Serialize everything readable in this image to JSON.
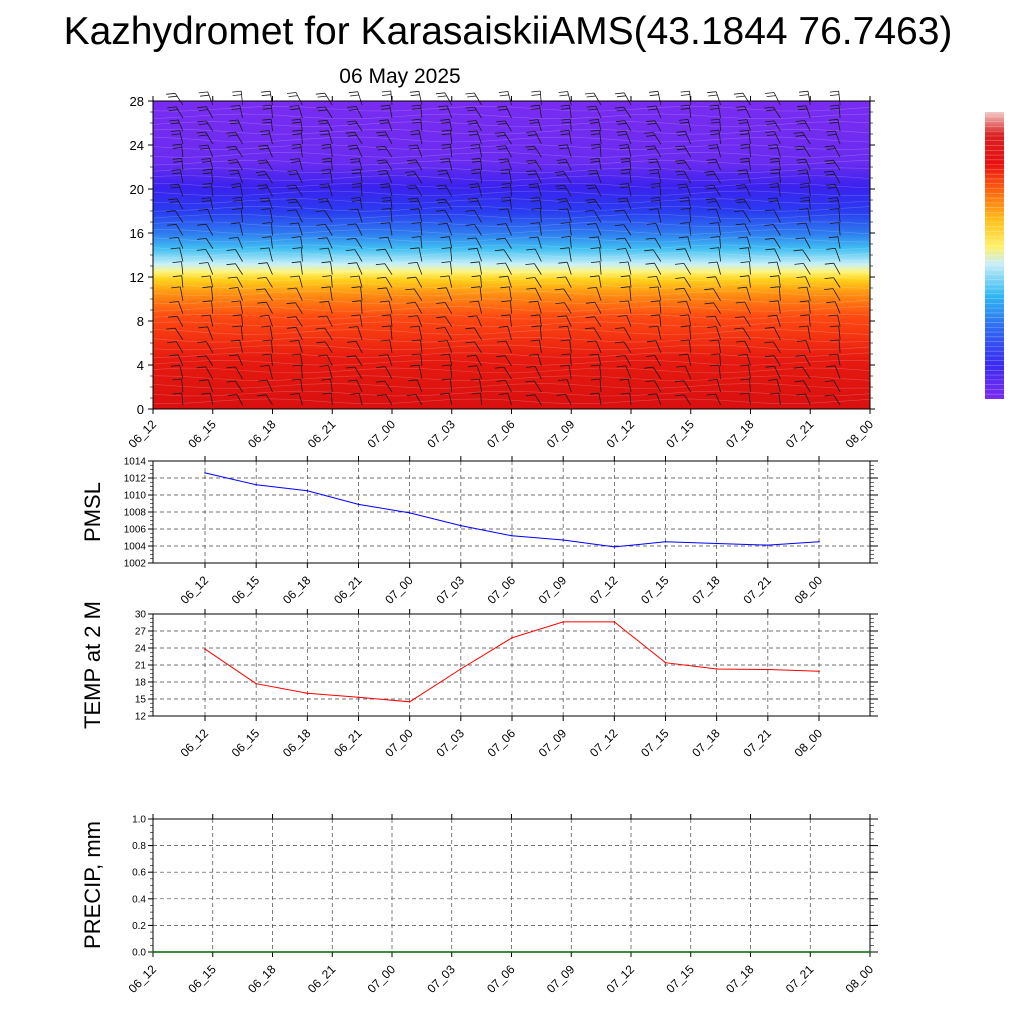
{
  "title": "Kazhydromet for KarasaiskiiAMS(43.1844 76.7463)",
  "subtitle": "06 May 2025",
  "chart_data": [
    {
      "type": "heatmap",
      "title": "Kazhydromet for KarasaiskiiAMS(43.1844 76.7463)",
      "subtitle": "06 May 2025",
      "x_ticks": [
        "06_12",
        "06_15",
        "06_18",
        "06_21",
        "07_00",
        "07_03",
        "07_06",
        "07_09",
        "07_12",
        "07_15",
        "07_18",
        "07_21",
        "08_00"
      ],
      "y_ticks": [
        0,
        4,
        8,
        12,
        16,
        20,
        24,
        28
      ],
      "ylim": [
        0,
        28
      ],
      "colorbar": [
        "#7b2cf0",
        "#3a2bf0",
        "#2f6cf2",
        "#2fb8f2",
        "#9de6f7",
        "#fff06a",
        "#ffc21c",
        "#ff8a10",
        "#ff4a10",
        "#e81010",
        "#d81818",
        "#f4c8c8"
      ],
      "overlay": "wind barbs"
    },
    {
      "type": "line",
      "ylabel": "PMSL",
      "ylim": [
        1002,
        1014
      ],
      "y_ticks": [
        1002,
        1004,
        1006,
        1008,
        1010,
        1012,
        1014
      ],
      "x": [
        "06_12",
        "06_15",
        "06_18",
        "06_21",
        "07_00",
        "07_03",
        "07_06",
        "07_09",
        "07_12",
        "07_15",
        "07_18",
        "07_21",
        "08_00"
      ],
      "grid": true,
      "series": [
        {
          "color": "#0000ff",
          "values": [
            1012.6,
            1011.2,
            1010.5,
            1008.9,
            1007.9,
            1006.4,
            1005.2,
            1004.7,
            1003.9,
            1004.5,
            1004.3,
            1004.1,
            1004.5
          ]
        }
      ]
    },
    {
      "type": "line",
      "ylabel": "TEMP at 2 M",
      "ylim": [
        12,
        30
      ],
      "y_ticks": [
        12,
        15,
        18,
        21,
        24,
        27,
        30
      ],
      "x": [
        "06_12",
        "06_15",
        "06_18",
        "06_21",
        "07_00",
        "07_03",
        "07_06",
        "07_09",
        "07_12",
        "07_15",
        "07_18",
        "07_21",
        "08_00"
      ],
      "grid": true,
      "series": [
        {
          "color": "#ff0000",
          "values": [
            23.8,
            17.7,
            16.0,
            15.3,
            14.5,
            20.3,
            25.8,
            28.6,
            28.6,
            21.4,
            20.3,
            20.2,
            19.9
          ]
        }
      ]
    },
    {
      "type": "line",
      "ylabel": "PRECIP, mm",
      "ylim": [
        0.0,
        1.0
      ],
      "y_ticks": [
        "0.0",
        "0.2",
        "0.4",
        "0.6",
        "0.8",
        "1.0"
      ],
      "x": [
        "06_12",
        "06_15",
        "06_18",
        "06_21",
        "07_00",
        "07_03",
        "07_06",
        "07_09",
        "07_12",
        "07_15",
        "07_18",
        "07_21",
        "08_00"
      ],
      "grid": true,
      "series": [
        {
          "color": "#006400",
          "values": [
            0,
            0,
            0,
            0,
            0,
            0,
            0,
            0,
            0,
            0,
            0,
            0,
            0
          ]
        }
      ]
    }
  ]
}
